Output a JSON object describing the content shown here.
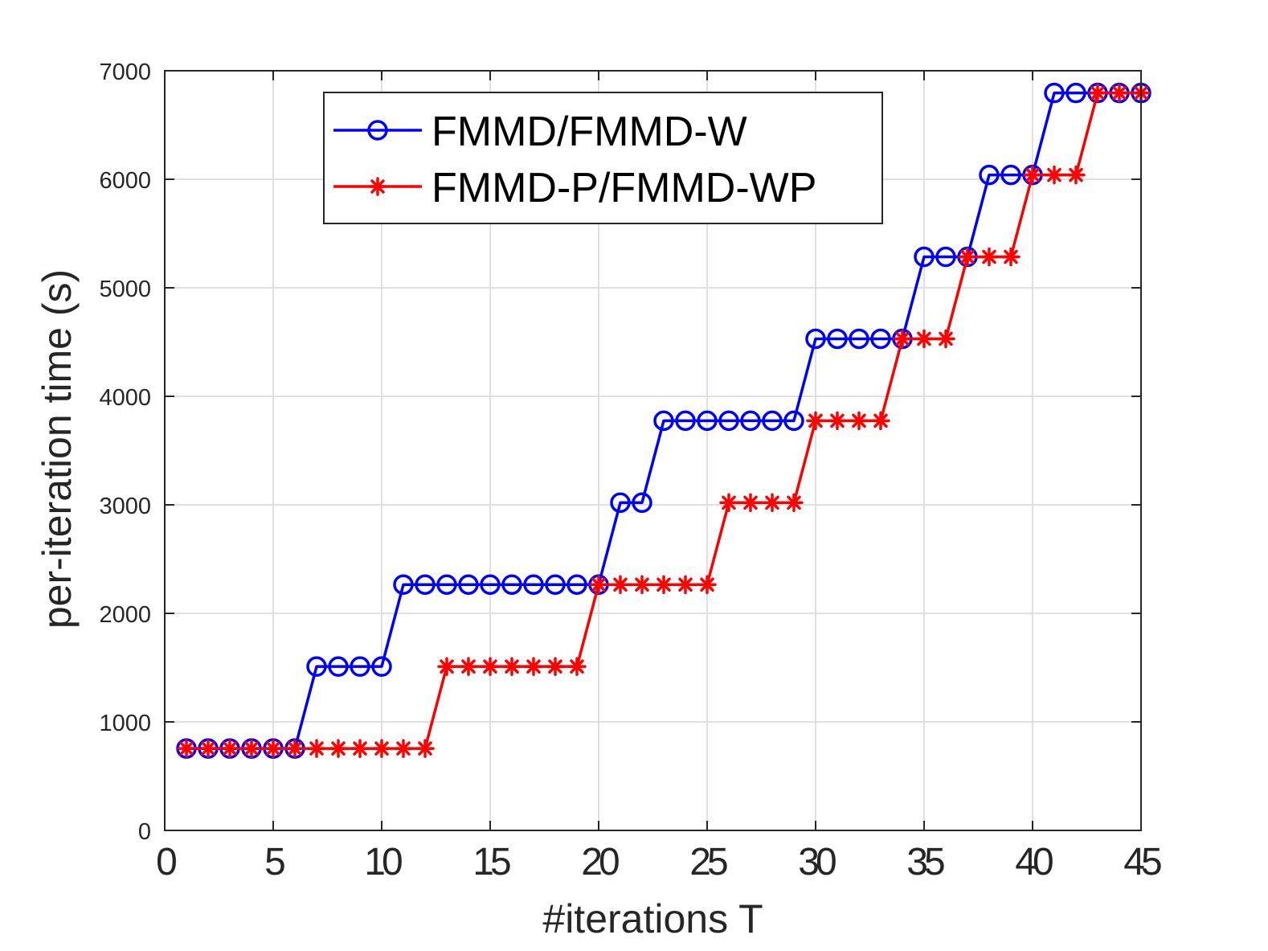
{
  "chart_data": {
    "type": "line",
    "title": "",
    "xlabel": "#iterations T",
    "ylabel": "per-iteration time (s)",
    "xlim": [
      0,
      45
    ],
    "ylim": [
      0,
      7000
    ],
    "xticks": [
      0,
      5,
      10,
      15,
      20,
      25,
      30,
      35,
      40,
      45
    ],
    "xtick_labels": [
      "0",
      "5",
      "10",
      "15",
      "20",
      "25",
      "30",
      "35",
      "40",
      "45"
    ],
    "yticks": [
      0,
      1000,
      2000,
      3000,
      4000,
      5000,
      6000,
      7000
    ],
    "ytick_labels": [
      "0",
      "1000",
      "2000",
      "3000",
      "4000",
      "5000",
      "6000",
      "7000"
    ],
    "grid": true,
    "legend_position": "top-center",
    "x": [
      1,
      2,
      3,
      4,
      5,
      6,
      7,
      8,
      9,
      10,
      11,
      12,
      13,
      14,
      15,
      16,
      17,
      18,
      19,
      20,
      21,
      22,
      23,
      24,
      25,
      26,
      27,
      28,
      29,
      30,
      31,
      32,
      33,
      34,
      35,
      36,
      37,
      38,
      39,
      40,
      41,
      42,
      43,
      44,
      45
    ],
    "series": [
      {
        "name": "FMMD/FMMD-W",
        "color": "#0000ff",
        "marker": "circle",
        "values": [
          755,
          755,
          755,
          755,
          755,
          755,
          1510,
          1510,
          1510,
          1510,
          2265,
          2265,
          2265,
          2265,
          2265,
          2265,
          2265,
          2265,
          2265,
          2265,
          3020,
          3020,
          3775,
          3775,
          3775,
          3775,
          3775,
          3775,
          3775,
          4530,
          4530,
          4530,
          4530,
          4530,
          5285,
          5285,
          5285,
          6040,
          6040,
          6040,
          6795,
          6795,
          6795,
          6795,
          6795
        ]
      },
      {
        "name": "FMMD-P/FMMD-WP",
        "color": "#ff0000",
        "marker": "asterisk",
        "values": [
          755,
          755,
          755,
          755,
          755,
          755,
          755,
          755,
          755,
          755,
          755,
          755,
          1510,
          1510,
          1510,
          1510,
          1510,
          1510,
          1510,
          2265,
          2265,
          2265,
          2265,
          2265,
          2265,
          3020,
          3020,
          3020,
          3020,
          3775,
          3775,
          3775,
          3775,
          4530,
          4530,
          4530,
          5285,
          5285,
          5285,
          6040,
          6040,
          6040,
          6795,
          6795,
          6795
        ]
      }
    ]
  }
}
